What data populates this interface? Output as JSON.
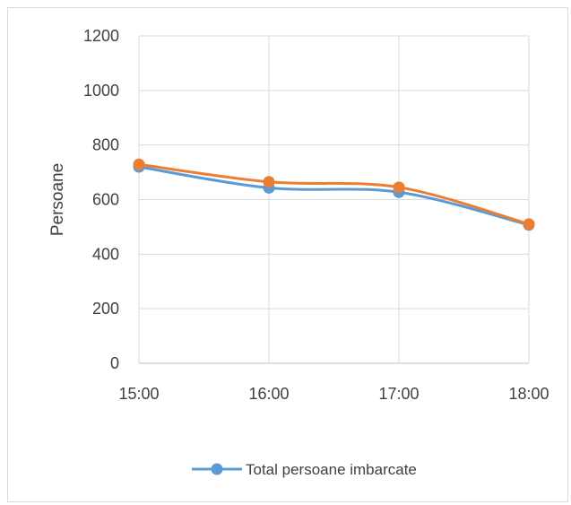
{
  "chart_data": {
    "type": "line",
    "x": [
      "15:00",
      "16:00",
      "17:00",
      "18:00"
    ],
    "ylabel": "Persoane",
    "xlabel": "",
    "ylim": [
      0,
      1200
    ],
    "yticks": [
      0,
      200,
      400,
      600,
      800,
      1000,
      1200
    ],
    "grid": true,
    "smooth": true,
    "legend_position": "bottom",
    "series": [
      {
        "name": "Total persoane imbarcate",
        "values": [
          720,
          643,
          627,
          507
        ],
        "color": "#5b9bd5",
        "in_legend": true
      },
      {
        "name": "",
        "values": [
          729,
          665,
          645,
          510
        ],
        "color": "#ed7d31",
        "in_legend": false
      }
    ]
  }
}
